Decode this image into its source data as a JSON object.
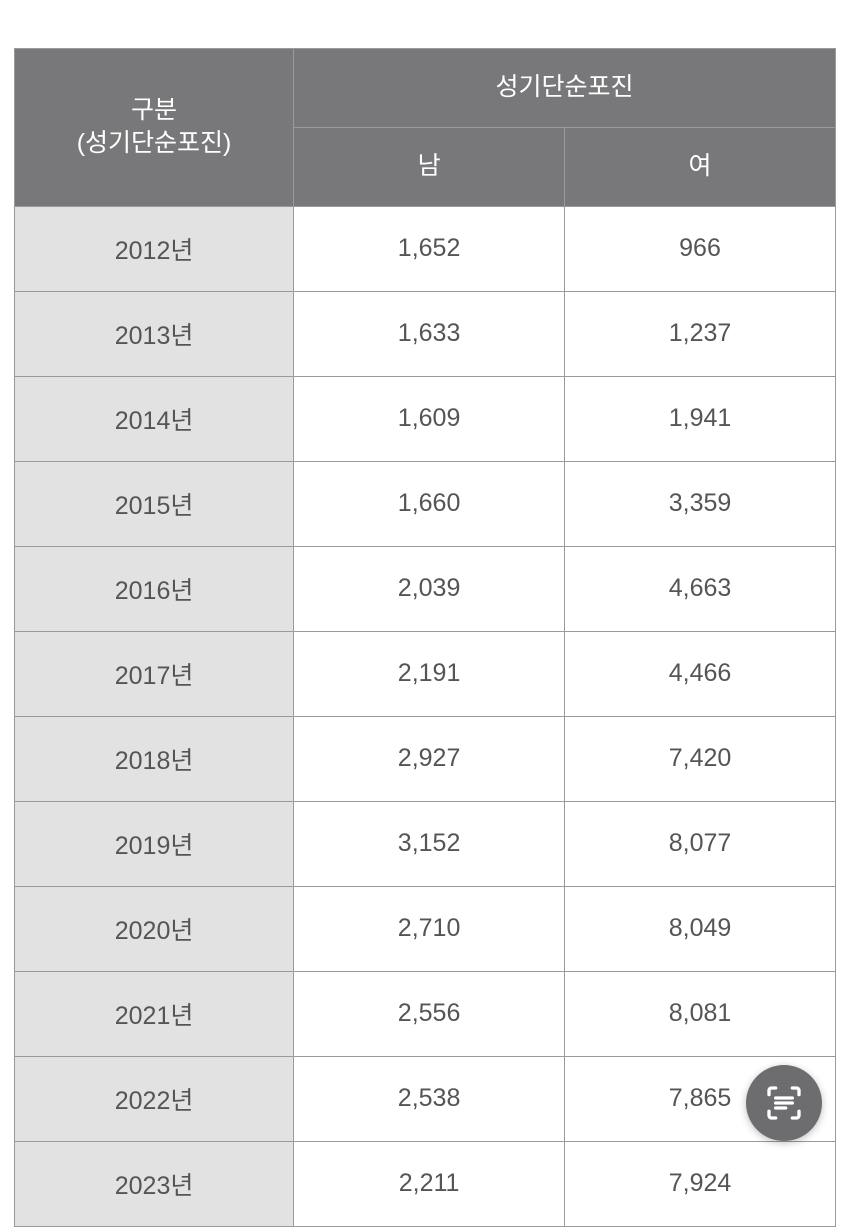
{
  "table": {
    "type": "table",
    "header": {
      "category_label": "구분\n(성기단순포진)",
      "group_label": "성기단순포진",
      "col_male": "남",
      "col_female": "여"
    },
    "columns": [
      "year",
      "male",
      "female"
    ],
    "column_widths_pct": [
      34,
      33,
      33
    ],
    "header_bg": "#78787a",
    "header_text_color": "#ffffff",
    "year_cell_bg": "#e2e2e2",
    "value_cell_bg": "#ffffff",
    "cell_text_color": "#555555",
    "border_color": "#9a9a9a",
    "header_fontsize": 25,
    "body_fontsize": 25,
    "rows": [
      {
        "year": "2012년",
        "male": "1,652",
        "female": "966"
      },
      {
        "year": "2013년",
        "male": "1,633",
        "female": "1,237"
      },
      {
        "year": "2014년",
        "male": "1,609",
        "female": "1,941"
      },
      {
        "year": "2015년",
        "male": "1,660",
        "female": "3,359"
      },
      {
        "year": "2016년",
        "male": "2,039",
        "female": "4,663"
      },
      {
        "year": "2017년",
        "male": "2,191",
        "female": "4,466"
      },
      {
        "year": "2018년",
        "male": "2,927",
        "female": "7,420"
      },
      {
        "year": "2019년",
        "male": "3,152",
        "female": "8,077"
      },
      {
        "year": "2020년",
        "male": "2,710",
        "female": "8,049"
      },
      {
        "year": "2021년",
        "male": "2,556",
        "female": "8,081"
      },
      {
        "year": "2022년",
        "male": "2,538",
        "female": "7,865"
      },
      {
        "year": "2023년",
        "male": "2,211",
        "female": "7,924"
      }
    ]
  },
  "floating_button": {
    "bg_color": "#6d6d6f",
    "icon_color": "#ffffff",
    "icon_name": "scan-text-icon"
  }
}
